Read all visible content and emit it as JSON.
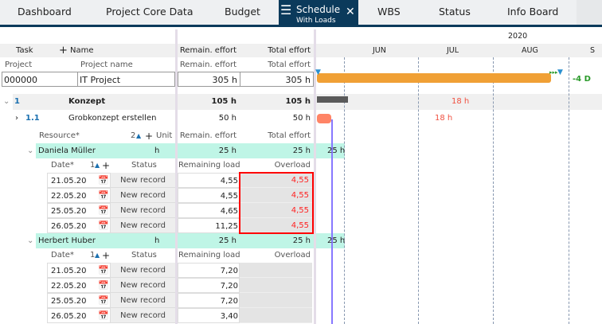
{
  "tabs": [
    {
      "label": "Dashboard"
    },
    {
      "label": "Project Core Data"
    },
    {
      "label": "Budget"
    },
    {
      "label": "Schedule",
      "sub": "With Loads",
      "active": true
    },
    {
      "label": "WBS"
    },
    {
      "label": "Status"
    },
    {
      "label": "Info Board"
    }
  ],
  "grid": {
    "header": {
      "task": "Task",
      "plus": "+",
      "name": "Name",
      "remain": "Remain. effort",
      "total": "Total effort"
    },
    "project_header": {
      "project": "Project",
      "name": "Project name",
      "remain": "Remain. effort",
      "total": "Total effort"
    },
    "project": {
      "id": "000000",
      "name": "IT Project",
      "remain": "305 h",
      "total": "305 h"
    },
    "task1": {
      "num": "1",
      "name": "Konzept",
      "remain": "105 h",
      "total": "105 h"
    },
    "task11": {
      "num": "1.1",
      "name": "Grobkonzept erstellen",
      "remain": "50 h",
      "total": "50 h"
    },
    "resource_header": {
      "resource": "Resource*",
      "sort": "2",
      "plus": "+",
      "unit": "Unit",
      "remain": "Remain. effort",
      "total": "Total effort"
    },
    "load_header": {
      "date": "Date*",
      "sort": "1",
      "plus": "+",
      "status": "Status",
      "remaining": "Remaining load",
      "overload": "Overload"
    },
    "resources": [
      {
        "name": "Daniela Müller",
        "unit": "h",
        "remain": "25 h",
        "total": "25 h",
        "gantt": "25 h",
        "rows": [
          {
            "date": "21.05.20",
            "status": "New record",
            "load": "4,55",
            "over": "4,55"
          },
          {
            "date": "22.05.20",
            "status": "New record",
            "load": "4,55",
            "over": "4,55"
          },
          {
            "date": "25.05.20",
            "status": "New record",
            "load": "4,65",
            "over": "4,55"
          },
          {
            "date": "26.05.20",
            "status": "New record",
            "load": "11,25",
            "over": "4,55"
          }
        ]
      },
      {
        "name": "Herbert Huber",
        "unit": "h",
        "remain": "25 h",
        "total": "25 h",
        "gantt": "25 h",
        "rows": [
          {
            "date": "21.05.20",
            "status": "New record",
            "load": "7,20",
            "over": ""
          },
          {
            "date": "22.05.20",
            "status": "New record",
            "load": "7,20",
            "over": ""
          },
          {
            "date": "25.05.20",
            "status": "New record",
            "load": "7,20",
            "over": ""
          },
          {
            "date": "26.05.20",
            "status": "New record",
            "load": "3,40",
            "over": ""
          }
        ]
      }
    ]
  },
  "gantt": {
    "year": "2020",
    "months": [
      "JUN",
      "JUL",
      "AUG",
      "S"
    ],
    "project_delta": "-4 D",
    "task1_label": "18 h",
    "task11_label": "18 h"
  },
  "colors": {
    "nav": "#0b3a5b",
    "project_bar": "#f0a035",
    "task_bar": "#ff8466",
    "summary_bar": "#5a5a5a",
    "resource_row": "#bff5e6",
    "overload": "#ff2222",
    "delta": "#2a9a2a"
  }
}
